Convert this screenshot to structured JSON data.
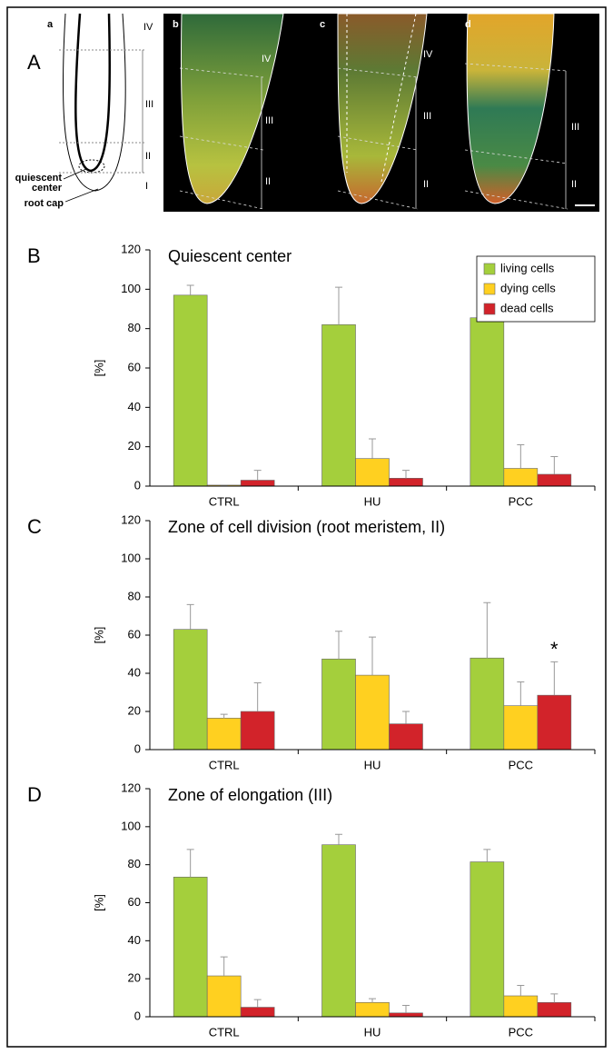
{
  "panel_a": {
    "label": "A",
    "panels": [
      {
        "label": "a",
        "zones": [
          "IV",
          "III",
          "II",
          "I"
        ]
      },
      {
        "label": "b",
        "zones": [
          "IV",
          "III",
          "II"
        ]
      },
      {
        "label": "c",
        "zones": [
          "IV",
          "III",
          "II"
        ]
      },
      {
        "label": "d",
        "zones": [
          "III",
          "II"
        ]
      }
    ],
    "annotations": [
      "quiescent",
      "center",
      "root cap"
    ]
  },
  "chart_data": [
    {
      "type": "bar",
      "panel_label": "B",
      "title": "Quiescent center",
      "ylabel": "[%]",
      "categories": [
        "CTRL",
        "HU",
        "PCC"
      ],
      "series": [
        {
          "name": "living cells",
          "color": "#a4cf3c",
          "values": [
            97,
            82,
            85.5
          ],
          "errors": [
            5,
            19,
            21
          ]
        },
        {
          "name": "dying cells",
          "color": "#ffd020",
          "values": [
            0.5,
            14,
            9
          ],
          "errors": [
            0,
            10,
            12
          ]
        },
        {
          "name": "dead cells",
          "color": "#d2232a",
          "values": [
            3,
            4,
            6
          ],
          "errors": [
            5,
            4,
            9
          ]
        }
      ],
      "ylim": [
        0,
        120
      ],
      "yticks": [
        0,
        20,
        40,
        60,
        80,
        100,
        120
      ]
    },
    {
      "type": "bar",
      "panel_label": "C",
      "title": "Zone of cell division (root meristem, II)",
      "ylabel": "[%]",
      "categories": [
        "CTRL",
        "HU",
        "PCC"
      ],
      "annotation": "*",
      "series": [
        {
          "color": "#a4cf3c",
          "values": [
            63,
            47.5,
            48
          ],
          "errors": [
            13,
            14.5,
            29
          ]
        },
        {
          "color": "#ffd020",
          "values": [
            16.5,
            39,
            23
          ],
          "errors": [
            2,
            20,
            12.5
          ]
        },
        {
          "color": "#d2232a",
          "values": [
            20,
            13.5,
            28.5
          ],
          "errors": [
            15,
            6.5,
            17.5
          ]
        }
      ],
      "ylim": [
        0,
        120
      ],
      "yticks": [
        0,
        20,
        40,
        60,
        80,
        100,
        120
      ]
    },
    {
      "type": "bar",
      "panel_label": "D",
      "title": "Zone of elongation (III)",
      "ylabel": "[%]",
      "categories": [
        "CTRL",
        "HU",
        "PCC"
      ],
      "series": [
        {
          "color": "#a4cf3c",
          "values": [
            73.5,
            90.5,
            81.5
          ],
          "errors": [
            14.5,
            5.5,
            6.5
          ]
        },
        {
          "color": "#ffd020",
          "values": [
            21.5,
            7.5,
            11
          ],
          "errors": [
            10,
            2,
            5.5
          ]
        },
        {
          "color": "#d2232a",
          "values": [
            5,
            2,
            7.5
          ],
          "errors": [
            4,
            4,
            4.5
          ]
        }
      ],
      "ylim": [
        0,
        120
      ],
      "yticks": [
        0,
        20,
        40,
        60,
        80,
        100,
        120
      ]
    }
  ]
}
